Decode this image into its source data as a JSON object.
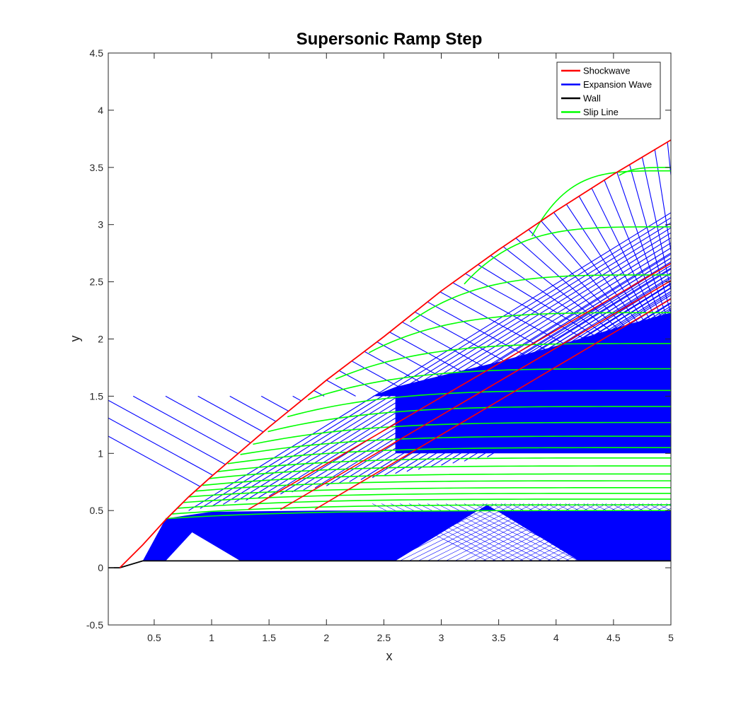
{
  "chart_data": {
    "type": "line",
    "title": "Supersonic Ramp Step",
    "xlabel": "x",
    "ylabel": "y",
    "xlim": [
      0.1,
      5
    ],
    "ylim": [
      -0.5,
      4.5
    ],
    "xticks": [
      "0.5",
      "1",
      "1.5",
      "2",
      "2.5",
      "3",
      "3.5",
      "4",
      "4.5",
      "5"
    ],
    "xtick_values": [
      0.5,
      1,
      1.5,
      2,
      2.5,
      3,
      3.5,
      4,
      4.5,
      5
    ],
    "yticks": [
      "-0.5",
      "0",
      "0.5",
      "1",
      "1.5",
      "2",
      "2.5",
      "3",
      "3.5",
      "4",
      "4.5"
    ],
    "ytick_values": [
      -0.5,
      0,
      0.5,
      1,
      1.5,
      2,
      2.5,
      3,
      3.5,
      4,
      4.5
    ],
    "grid": false,
    "legend_position": "top-right",
    "legend": [
      {
        "label": "Shockwave",
        "color": "#ff0000"
      },
      {
        "label": "Expansion Wave",
        "color": "#0000ff"
      },
      {
        "label": "Wall",
        "color": "#000000"
      },
      {
        "label": "Slip Line",
        "color": "#00ff00"
      }
    ],
    "series": [
      {
        "name": "Wall",
        "color": "#000000",
        "x": [
          0.1,
          0.2,
          0.4,
          5.0
        ],
        "y": [
          0.0,
          0.0,
          0.06,
          0.06
        ]
      },
      {
        "name": "Shockwave",
        "color": "#ff0000",
        "x": [
          0.2,
          0.4,
          0.6,
          0.8,
          1.0,
          1.5,
          2.0,
          2.5,
          3.0,
          3.5,
          4.0,
          4.5,
          5.0
        ],
        "y": [
          0.0,
          0.2,
          0.42,
          0.62,
          0.8,
          1.23,
          1.64,
          2.02,
          2.42,
          2.78,
          3.12,
          3.44,
          3.74
        ]
      }
    ],
    "secondary_shocks": [
      {
        "x": [
          1.32,
          5.0
        ],
        "y": [
          0.51,
          2.66
        ]
      },
      {
        "x": [
          1.6,
          5.0
        ],
        "y": [
          0.51,
          2.51
        ]
      },
      {
        "x": [
          1.9,
          5.0
        ],
        "y": [
          0.51,
          2.35
        ]
      }
    ],
    "slip_lines": [
      {
        "x0": 0.6,
        "y0": 0.43,
        "yend": 0.5
      },
      {
        "x0": 0.65,
        "y0": 0.47,
        "yend": 0.55
      },
      {
        "x0": 0.7,
        "y0": 0.52,
        "yend": 0.6
      },
      {
        "x0": 0.75,
        "y0": 0.57,
        "yend": 0.65
      },
      {
        "x0": 0.8,
        "y0": 0.62,
        "yend": 0.7
      },
      {
        "x0": 0.86,
        "y0": 0.67,
        "yend": 0.76
      },
      {
        "x0": 0.92,
        "y0": 0.72,
        "yend": 0.82
      },
      {
        "x0": 0.98,
        "y0": 0.78,
        "yend": 0.89
      },
      {
        "x0": 1.05,
        "y0": 0.84,
        "yend": 0.96
      },
      {
        "x0": 1.14,
        "y0": 0.91,
        "yend": 1.05
      },
      {
        "x0": 1.25,
        "y0": 0.99,
        "yend": 1.15
      },
      {
        "x0": 1.36,
        "y0": 1.08,
        "yend": 1.27
      },
      {
        "x0": 1.49,
        "y0": 1.19,
        "yend": 1.41
      },
      {
        "x0": 1.66,
        "y0": 1.32,
        "yend": 1.55
      },
      {
        "x0": 1.84,
        "y0": 1.47,
        "yend": 1.74
      },
      {
        "x0": 2.08,
        "y0": 1.65,
        "yend": 1.96
      },
      {
        "x0": 2.37,
        "y0": 1.88,
        "yend": 2.23
      },
      {
        "x0": 2.73,
        "y0": 2.15,
        "yend": 2.56
      },
      {
        "x0": 3.2,
        "y0": 2.48,
        "yend": 2.98
      },
      {
        "x0": 3.79,
        "y0": 2.9,
        "yend": 3.47
      },
      {
        "x0": 4.55,
        "y0": 3.43,
        "yend": 3.5
      }
    ]
  }
}
